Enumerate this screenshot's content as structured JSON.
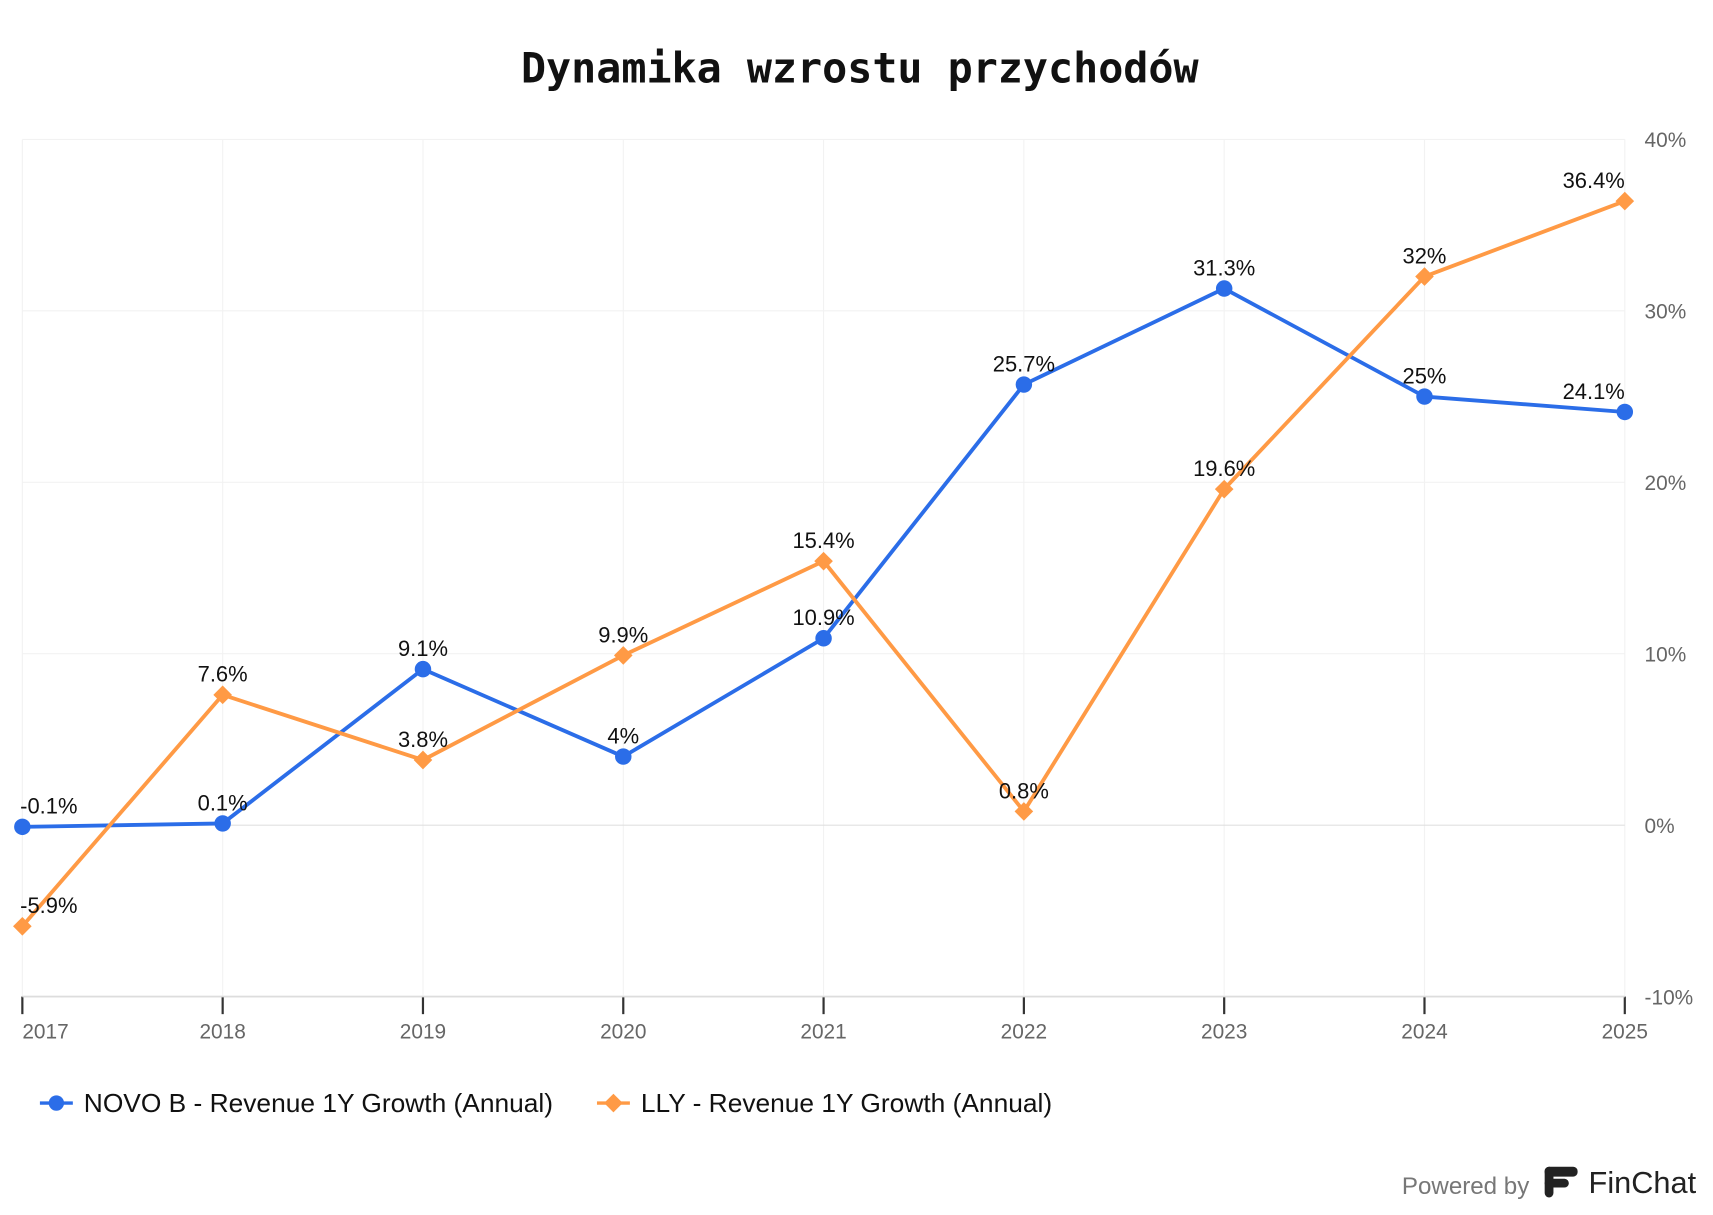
{
  "chart_data": {
    "type": "line",
    "title": "Dynamika wzrostu przychodów",
    "x": [
      "2017",
      "2018",
      "2019",
      "2020",
      "2021",
      "2022",
      "2023",
      "2024",
      "2025"
    ],
    "series": [
      {
        "name": "NOVO B - Revenue 1Y Growth (Annual)",
        "color": "#2B6DE8",
        "marker": "circle",
        "values": [
          -0.1,
          0.1,
          9.1,
          4,
          10.9,
          25.7,
          31.3,
          25,
          24.1
        ],
        "labels": [
          "-0.1%",
          "0.1%",
          "9.1%",
          "4%",
          "10.9%",
          "25.7%",
          "31.3%",
          "25%",
          "24.1%"
        ]
      },
      {
        "name": "LLY - Revenue 1Y Growth (Annual)",
        "color": "#FF9A45",
        "marker": "diamond",
        "values": [
          -5.9,
          7.6,
          3.8,
          9.9,
          15.4,
          0.8,
          19.6,
          32,
          36.4
        ],
        "labels": [
          "-5.9%",
          "7.6%",
          "3.8%",
          "9.9%",
          "15.4%",
          "0.8%",
          "19.6%",
          "32%",
          "36.4%"
        ]
      }
    ],
    "ylim": [
      -10,
      40
    ],
    "yticks": [
      -10,
      0,
      10,
      20,
      30,
      40
    ],
    "ytick_labels": [
      "-10%",
      "0%",
      "10%",
      "20%",
      "30%",
      "40%"
    ],
    "y_axis_side": "right",
    "grid": true,
    "legend": "bottom-left"
  },
  "footer": {
    "powered_by": "Powered by",
    "brand": "FinChat"
  }
}
